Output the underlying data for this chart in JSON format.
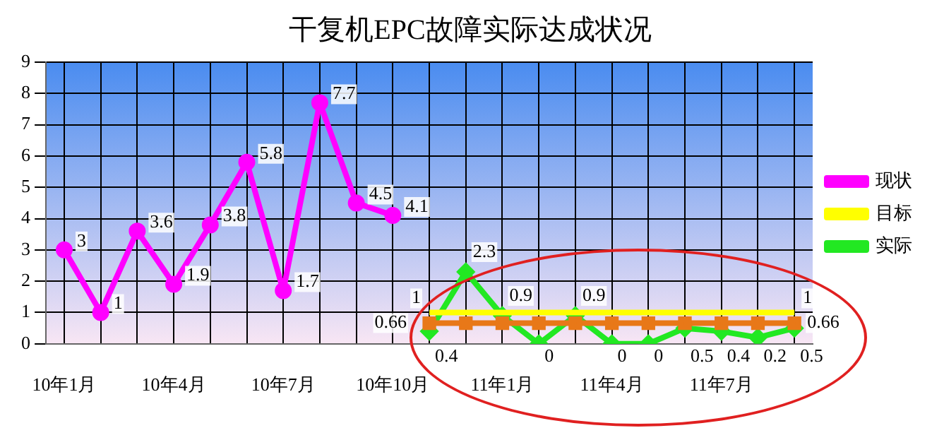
{
  "chart_data": {
    "type": "line",
    "title": "干复机EPC故障实际达成状况",
    "categories": [
      "10年1月",
      null,
      null,
      "10年4月",
      null,
      null,
      "10年7月",
      null,
      null,
      "10年10月",
      null,
      null,
      "11年1月",
      null,
      null,
      "11年4月",
      null,
      null,
      "11年7月",
      null,
      null
    ],
    "series": [
      {
        "name": "现状",
        "color": "#ff00ff",
        "marker": "circle",
        "values": [
          3,
          1,
          3.6,
          1.9,
          3.8,
          5.8,
          1.7,
          7.7,
          4.5,
          4.1,
          null,
          null,
          null,
          null,
          null,
          null,
          null,
          null,
          null,
          null,
          null
        ],
        "value_labels": [
          "3",
          "1",
          "3.6",
          "1.9",
          "3.8",
          "5.8",
          "1.7",
          "7.7",
          "4.5",
          "4.1",
          null,
          null,
          null,
          null,
          null,
          null,
          null,
          null,
          null,
          null,
          null
        ]
      },
      {
        "name": "目标",
        "color": "#ffff00",
        "marker": "none",
        "values": [
          null,
          null,
          null,
          null,
          null,
          null,
          null,
          null,
          null,
          null,
          1,
          1,
          1,
          1,
          1,
          1,
          1,
          1,
          1,
          1,
          1
        ],
        "value_labels": [
          null,
          null,
          null,
          null,
          null,
          null,
          null,
          null,
          null,
          null,
          "1",
          null,
          null,
          null,
          null,
          null,
          null,
          null,
          null,
          null,
          "1"
        ]
      },
      {
        "color": "#e87818",
        "marker": "square",
        "values": [
          null,
          null,
          null,
          null,
          null,
          null,
          null,
          null,
          null,
          null,
          0.66,
          0.66,
          0.66,
          0.66,
          0.66,
          0.66,
          0.66,
          0.66,
          0.66,
          0.66,
          0.66
        ],
        "value_labels": [
          null,
          null,
          null,
          null,
          null,
          null,
          null,
          null,
          null,
          null,
          "0.66",
          null,
          null,
          null,
          null,
          null,
          null,
          null,
          null,
          null,
          "0.66"
        ]
      },
      {
        "name": "实际",
        "color": "#22e822",
        "marker": "diamond",
        "values": [
          null,
          null,
          null,
          null,
          null,
          null,
          null,
          null,
          null,
          null,
          0.4,
          2.3,
          0.9,
          0,
          0.9,
          0,
          0,
          0.5,
          0.4,
          0.2,
          0.5
        ],
        "value_labels": [
          null,
          null,
          null,
          null,
          null,
          null,
          null,
          null,
          null,
          null,
          "0.4",
          "2.3",
          "0.9",
          "0",
          "0.9",
          "0",
          "0",
          "0.5",
          "0.4",
          "0.2",
          "0.5"
        ]
      }
    ],
    "ylim": [
      0,
      9
    ],
    "yticks": [
      0,
      1,
      2,
      3,
      4,
      5,
      6,
      7,
      8,
      9
    ],
    "grid": true,
    "legend": "right"
  }
}
